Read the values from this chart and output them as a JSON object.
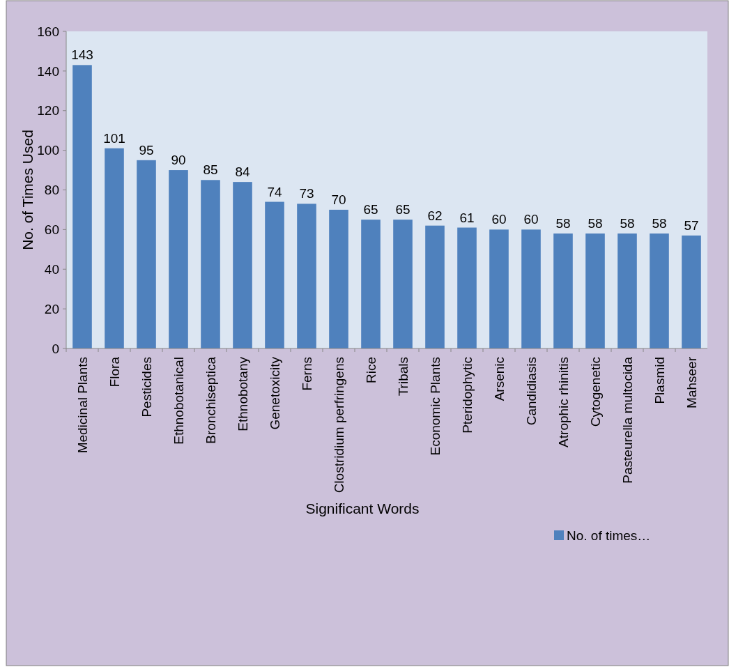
{
  "chart_data": {
    "type": "bar",
    "xlabel": "Significant Words",
    "ylabel": "No. of Times  Used",
    "categories": [
      "Medicinal Plants",
      "Flora",
      "Pesticides",
      "Ethnobotanical",
      "Bronchiseptica",
      "Ethnobotany",
      "Genetoxicity",
      "Ferns",
      "Clostridium perfringens",
      "Rice",
      "Tribals",
      "Economic Plants",
      "Pteridophytic",
      "Arsenic",
      "Candidiasis",
      "Atrophic rhinitis",
      "Cytogenetic",
      "Pasteurella multocida",
      "Plasmid",
      "Mahseer"
    ],
    "series": [
      {
        "name": "No. of times…",
        "color": "#4f81bd",
        "values": [
          143,
          101,
          95,
          90,
          85,
          84,
          74,
          73,
          70,
          65,
          65,
          62,
          61,
          60,
          60,
          58,
          58,
          58,
          58,
          57
        ]
      }
    ],
    "ylim": [
      0,
      160
    ],
    "yticks": [
      0,
      20,
      40,
      60,
      80,
      100,
      120,
      140,
      160
    ],
    "data_labels": true,
    "legend": "bottom right",
    "grid": false
  }
}
